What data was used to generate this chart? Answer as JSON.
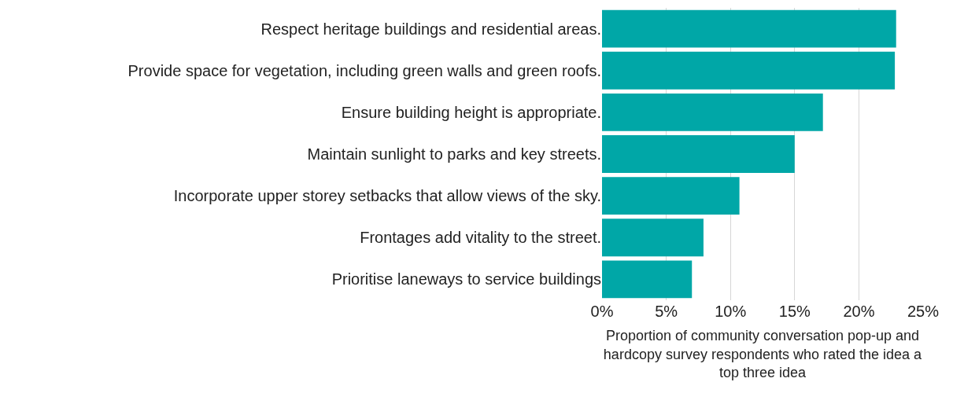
{
  "chart_data": {
    "type": "bar",
    "orientation": "horizontal",
    "categories": [
      "Respect heritage buildings and residential areas.",
      "Provide space for vegetation, including green walls and green roofs.",
      "Ensure building height is appropriate.",
      "Maintain sunlight to parks and key streets.",
      "Incorporate upper storey setbacks that allow views of the sky.",
      "Frontages add vitality to the street.",
      "Prioritise laneways to service buildings"
    ],
    "values": [
      22.9,
      22.8,
      17.2,
      15.0,
      10.7,
      7.9,
      7.0
    ],
    "color": "#00a7a7",
    "xlim": [
      0,
      25
    ],
    "xticks": [
      {
        "value": 0,
        "label": "0%"
      },
      {
        "value": 5,
        "label": "5%"
      },
      {
        "value": 10,
        "label": "10%"
      },
      {
        "value": 15,
        "label": "15%"
      },
      {
        "value": 20,
        "label": "20%"
      },
      {
        "value": 25,
        "label": "25%"
      }
    ],
    "xlabel": "Proportion of community conversation pop-up and hardcopy survey respondents who rated the idea a top three idea",
    "grid": "x",
    "legend": false
  }
}
